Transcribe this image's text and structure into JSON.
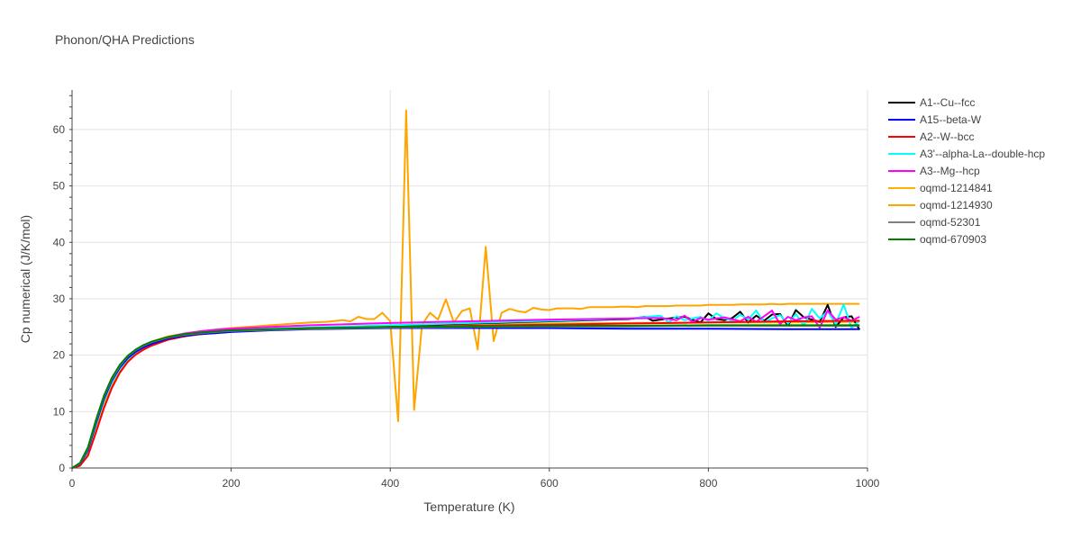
{
  "chart_data": {
    "type": "line",
    "title": "Phonon/QHA Predictions",
    "xlabel": "Temperature (K)",
    "ylabel": "Cp numerical (J/K/mol)",
    "xlim": [
      0,
      1000
    ],
    "ylim": [
      0,
      67
    ],
    "xticks": [
      0,
      200,
      400,
      600,
      800,
      1000
    ],
    "yticks": [
      0,
      10,
      20,
      30,
      40,
      50,
      60
    ],
    "grid": true,
    "legend_position": "right",
    "series": [
      {
        "name": "A1--Cu--fcc",
        "color": "#000000",
        "x": [
          0,
          10,
          20,
          30,
          40,
          50,
          60,
          70,
          80,
          90,
          100,
          120,
          140,
          160,
          180,
          200,
          250,
          300,
          400,
          500,
          600,
          650,
          700,
          720,
          730,
          750,
          770,
          790,
          800,
          810,
          820,
          830,
          840,
          850,
          860,
          870,
          880,
          890,
          900,
          910,
          920,
          930,
          940,
          950,
          960,
          970,
          980,
          990
        ],
        "y": [
          0,
          0.6,
          3.0,
          7.7,
          12.0,
          15.3,
          17.7,
          19.4,
          20.6,
          21.5,
          22.1,
          23.0,
          23.5,
          23.9,
          24.1,
          24.3,
          24.6,
          24.8,
          25.2,
          25.6,
          26.0,
          26.2,
          26.4,
          26.8,
          26.1,
          26.5,
          26.8,
          25.8,
          27.4,
          26.4,
          26.2,
          26.6,
          27.7,
          25.8,
          27.0,
          26.1,
          27.2,
          27.3,
          25.2,
          28.0,
          26.7,
          26.3,
          25.9,
          28.9,
          25.0,
          26.7,
          26.9,
          24.5
        ]
      },
      {
        "name": "A15--beta-W",
        "color": "#0000ff",
        "x": [
          0,
          10,
          20,
          30,
          40,
          50,
          60,
          70,
          80,
          90,
          100,
          120,
          140,
          160,
          180,
          200,
          250,
          300,
          400,
          500,
          600,
          700,
          800,
          900,
          990
        ],
        "y": [
          0,
          0.7,
          3.2,
          7.9,
          12.2,
          15.5,
          17.8,
          19.5,
          20.6,
          21.4,
          22.0,
          22.9,
          23.4,
          23.7,
          23.9,
          24.1,
          24.4,
          24.6,
          24.8,
          24.8,
          24.8,
          24.7,
          24.7,
          24.6,
          24.6
        ]
      },
      {
        "name": "A2--W--bcc",
        "color": "#ff0000",
        "x": [
          0,
          10,
          20,
          30,
          40,
          50,
          60,
          70,
          80,
          90,
          100,
          120,
          140,
          160,
          180,
          200,
          250,
          300,
          400,
          500,
          600,
          700,
          800,
          900,
          990
        ],
        "y": [
          0,
          0.4,
          2.2,
          6.3,
          10.6,
          14.2,
          16.9,
          18.8,
          20.1,
          21.0,
          21.7,
          22.7,
          23.3,
          23.7,
          24.0,
          24.2,
          24.5,
          24.7,
          25.0,
          25.2,
          25.4,
          25.6,
          25.8,
          26.0,
          26.1
        ]
      },
      {
        "name": "A3'--alpha-La--double-hcp",
        "color": "#00ffff",
        "x": [
          0,
          10,
          20,
          30,
          40,
          50,
          60,
          70,
          80,
          90,
          100,
          120,
          140,
          160,
          180,
          200,
          250,
          300,
          400,
          500,
          600,
          700,
          740,
          750,
          760,
          770,
          780,
          790,
          800,
          810,
          820,
          830,
          840,
          850,
          860,
          870,
          880,
          890,
          900,
          910,
          920,
          930,
          940,
          950,
          960,
          970,
          980,
          990
        ],
        "y": [
          0,
          0.6,
          3.0,
          7.6,
          11.9,
          15.2,
          17.6,
          19.3,
          20.5,
          21.4,
          22.1,
          23.0,
          23.5,
          23.9,
          24.2,
          24.4,
          24.7,
          24.9,
          25.3,
          25.7,
          26.1,
          26.5,
          27.0,
          25.8,
          26.9,
          26.2,
          26.5,
          26.8,
          26.1,
          27.4,
          26.6,
          26.0,
          27.2,
          26.3,
          27.9,
          25.8,
          26.5,
          27.1,
          25.6,
          27.3,
          25.2,
          28.2,
          26.5,
          27.8,
          25.5,
          29.0,
          24.8,
          26.2
        ]
      },
      {
        "name": "A3--Mg--hcp",
        "color": "#ff00ff",
        "x": [
          0,
          10,
          20,
          30,
          40,
          50,
          60,
          70,
          80,
          90,
          100,
          120,
          140,
          160,
          180,
          200,
          250,
          300,
          400,
          500,
          600,
          650,
          700,
          740,
          760,
          770,
          780,
          790,
          800,
          820,
          840,
          850,
          860,
          870,
          880,
          890,
          900,
          910,
          920,
          930,
          940,
          950,
          960,
          970,
          980,
          990
        ],
        "y": [
          0,
          0.7,
          3.3,
          8.0,
          12.3,
          15.6,
          17.9,
          19.6,
          20.8,
          21.7,
          22.3,
          23.2,
          23.8,
          24.2,
          24.5,
          24.7,
          25.0,
          25.3,
          25.7,
          26.0,
          26.3,
          26.4,
          26.5,
          26.6,
          26.2,
          27.0,
          25.9,
          26.6,
          26.3,
          26.7,
          26.0,
          26.8,
          25.9,
          26.9,
          27.9,
          25.5,
          26.8,
          26.2,
          26.7,
          26.9,
          24.9,
          27.9,
          26.3,
          26.7,
          26.1,
          26.8
        ]
      },
      {
        "name": "oqmd-1214841",
        "color": "#ffb000",
        "x": [
          0,
          10,
          20,
          30,
          40,
          50,
          60,
          70,
          80,
          90,
          100,
          120,
          140,
          160,
          180,
          200,
          250,
          300,
          350,
          400,
          450,
          500,
          600,
          700,
          800,
          900,
          990
        ],
        "y": [
          0,
          0.5,
          2.7,
          7.1,
          11.4,
          14.8,
          17.3,
          19.0,
          20.3,
          21.2,
          21.8,
          22.8,
          23.3,
          23.7,
          24.0,
          24.2,
          24.6,
          24.8,
          25.0,
          25.2,
          25.3,
          25.4,
          25.6,
          25.7,
          25.8,
          25.8,
          25.9
        ]
      },
      {
        "name": "oqmd-1214930",
        "color": "#ffa500",
        "x": [
          0,
          10,
          20,
          30,
          40,
          50,
          60,
          70,
          80,
          90,
          100,
          120,
          140,
          160,
          180,
          200,
          250,
          300,
          320,
          340,
          350,
          360,
          370,
          380,
          390,
          400,
          410,
          420,
          430,
          440,
          450,
          460,
          470,
          480,
          490,
          500,
          510,
          520,
          530,
          540,
          550,
          560,
          570,
          580,
          590,
          600,
          610,
          620,
          630,
          640,
          650,
          660,
          670,
          680,
          690,
          700,
          710,
          720,
          730,
          740,
          750,
          760,
          770,
          780,
          790,
          800,
          810,
          820,
          830,
          840,
          850,
          860,
          870,
          880,
          890,
          900,
          910,
          920,
          930,
          940,
          950,
          960,
          970,
          980,
          990
        ],
        "y": [
          0,
          0.6,
          3.0,
          7.8,
          12.1,
          15.5,
          17.9,
          19.6,
          20.8,
          21.7,
          22.4,
          23.3,
          23.8,
          24.2,
          24.5,
          24.8,
          25.3,
          25.8,
          25.9,
          26.2,
          26.0,
          26.8,
          26.4,
          26.4,
          27.5,
          26.0,
          8.3,
          63.4,
          10.3,
          25.4,
          27.5,
          26.3,
          29.9,
          25.8,
          27.8,
          28.3,
          21.0,
          39.2,
          22.5,
          27.5,
          28.2,
          27.8,
          27.6,
          28.4,
          28.1,
          28.0,
          28.3,
          28.3,
          28.3,
          28.2,
          28.5,
          28.5,
          28.5,
          28.5,
          28.6,
          28.6,
          28.5,
          28.7,
          28.7,
          28.7,
          28.7,
          28.8,
          28.8,
          28.8,
          28.8,
          28.9,
          28.9,
          28.9,
          28.9,
          29.0,
          29.0,
          29.0,
          29.0,
          29.1,
          29.0,
          29.1,
          29.1,
          29.1,
          29.1,
          29.1,
          29.1,
          29.1,
          29.1,
          29.1,
          29.1
        ]
      },
      {
        "name": "oqmd-52301",
        "color": "#808080",
        "x": [
          0,
          10,
          20,
          30,
          40,
          50,
          60,
          70,
          80,
          90,
          100,
          120,
          140,
          160,
          180,
          200,
          250,
          300,
          400,
          500,
          600,
          700,
          800,
          900,
          990
        ],
        "y": [
          0,
          0.8,
          3.5,
          8.3,
          12.6,
          15.8,
          18.1,
          19.8,
          20.9,
          21.7,
          22.3,
          23.1,
          23.6,
          23.9,
          24.1,
          24.3,
          24.5,
          24.7,
          24.9,
          25.0,
          25.1,
          25.1,
          25.2,
          25.2,
          25.2
        ]
      },
      {
        "name": "oqmd-670903",
        "color": "#008000",
        "x": [
          0,
          10,
          20,
          30,
          40,
          50,
          60,
          70,
          80,
          90,
          100,
          120,
          140,
          160,
          180,
          200,
          250,
          300,
          400,
          500,
          600,
          700,
          800,
          900,
          990
        ],
        "y": [
          0,
          0.9,
          3.7,
          8.5,
          12.8,
          16.0,
          18.3,
          19.9,
          21.0,
          21.8,
          22.4,
          23.2,
          23.7,
          24.0,
          24.2,
          24.4,
          24.6,
          24.8,
          25.0,
          25.1,
          25.2,
          25.2,
          25.3,
          25.3,
          25.3
        ]
      }
    ]
  }
}
